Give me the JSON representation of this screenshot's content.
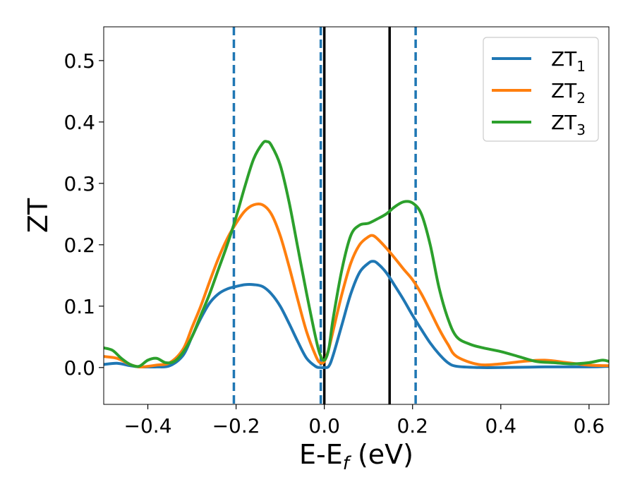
{
  "chart_data": {
    "type": "line",
    "title": "",
    "xlabel": "E-E",
    "xlabel_sub": "f",
    "xlabel_unit": " (eV)",
    "ylabel": "ZT",
    "xlim": [
      -0.5,
      0.645
    ],
    "ylim": [
      -0.06,
      0.555
    ],
    "xticks": [
      -0.4,
      -0.2,
      0.0,
      0.2,
      0.4,
      0.6
    ],
    "xtick_labels": [
      "−0.4",
      "−0.2",
      "0.0",
      "0.2",
      "0.4",
      "0.6"
    ],
    "yticks": [
      0.0,
      0.1,
      0.2,
      0.3,
      0.4,
      0.5
    ],
    "ytick_labels": [
      "0.0",
      "0.1",
      "0.2",
      "0.3",
      "0.4",
      "0.5"
    ],
    "grid": false,
    "legend_position": "top-right",
    "vlines_dashed": [
      -0.205,
      -0.008,
      0.207
    ],
    "vlines_solid": [
      0.0,
      0.148
    ],
    "vline_dashed_color": "#1f77b4",
    "vline_solid_color": "#000000",
    "series": [
      {
        "name": "ZT",
        "sub": "1",
        "color": "#1f77b4",
        "x": [
          -0.5,
          -0.47,
          -0.44,
          -0.42,
          -0.4,
          -0.38,
          -0.35,
          -0.32,
          -0.3,
          -0.28,
          -0.26,
          -0.24,
          -0.22,
          -0.2,
          -0.18,
          -0.16,
          -0.14,
          -0.12,
          -0.1,
          -0.08,
          -0.06,
          -0.04,
          -0.02,
          -0.01,
          0.0,
          0.01,
          0.02,
          0.04,
          0.06,
          0.08,
          0.1,
          0.11,
          0.12,
          0.14,
          0.16,
          0.18,
          0.2,
          0.22,
          0.24,
          0.26,
          0.28,
          0.3,
          0.35,
          0.4,
          0.5,
          0.6,
          0.645
        ],
        "y": [
          0.005,
          0.007,
          0.003,
          0.001,
          0.001,
          0.001,
          0.003,
          0.02,
          0.05,
          0.08,
          0.105,
          0.12,
          0.128,
          0.132,
          0.135,
          0.135,
          0.132,
          0.12,
          0.1,
          0.072,
          0.042,
          0.015,
          0.002,
          0.0,
          0.0,
          0.002,
          0.02,
          0.07,
          0.12,
          0.155,
          0.17,
          0.173,
          0.17,
          0.155,
          0.133,
          0.11,
          0.085,
          0.062,
          0.04,
          0.022,
          0.008,
          0.002,
          0.0,
          0.0,
          0.001,
          0.001,
          0.002
        ]
      },
      {
        "name": "ZT",
        "sub": "2",
        "color": "#ff7f0e",
        "x": [
          -0.5,
          -0.47,
          -0.44,
          -0.42,
          -0.4,
          -0.38,
          -0.35,
          -0.32,
          -0.3,
          -0.28,
          -0.26,
          -0.24,
          -0.22,
          -0.2,
          -0.18,
          -0.16,
          -0.14,
          -0.12,
          -0.1,
          -0.08,
          -0.06,
          -0.04,
          -0.02,
          -0.01,
          0.0,
          0.01,
          0.02,
          0.04,
          0.06,
          0.08,
          0.1,
          0.11,
          0.12,
          0.14,
          0.16,
          0.18,
          0.2,
          0.22,
          0.24,
          0.26,
          0.28,
          0.3,
          0.35,
          0.4,
          0.45,
          0.5,
          0.55,
          0.6,
          0.645
        ],
        "y": [
          0.018,
          0.015,
          0.005,
          0.001,
          0.002,
          0.004,
          0.008,
          0.03,
          0.065,
          0.1,
          0.14,
          0.178,
          0.21,
          0.235,
          0.255,
          0.265,
          0.265,
          0.25,
          0.215,
          0.165,
          0.11,
          0.058,
          0.02,
          0.008,
          0.01,
          0.03,
          0.06,
          0.12,
          0.17,
          0.2,
          0.213,
          0.215,
          0.21,
          0.195,
          0.178,
          0.16,
          0.143,
          0.12,
          0.092,
          0.063,
          0.038,
          0.018,
          0.005,
          0.006,
          0.01,
          0.012,
          0.008,
          0.004,
          0.003
        ]
      },
      {
        "name": "ZT",
        "sub": "3",
        "color": "#2ca02c",
        "x": [
          -0.5,
          -0.48,
          -0.46,
          -0.44,
          -0.42,
          -0.4,
          -0.38,
          -0.36,
          -0.34,
          -0.32,
          -0.3,
          -0.28,
          -0.26,
          -0.24,
          -0.22,
          -0.2,
          -0.18,
          -0.16,
          -0.14,
          -0.13,
          -0.12,
          -0.1,
          -0.08,
          -0.06,
          -0.04,
          -0.02,
          -0.01,
          0.0,
          0.01,
          0.02,
          0.04,
          0.06,
          0.08,
          0.1,
          0.12,
          0.14,
          0.16,
          0.18,
          0.2,
          0.22,
          0.24,
          0.26,
          0.28,
          0.3,
          0.33,
          0.36,
          0.4,
          0.44,
          0.48,
          0.52,
          0.56,
          0.6,
          0.63,
          0.645
        ],
        "y": [
          0.032,
          0.028,
          0.015,
          0.005,
          0.002,
          0.012,
          0.015,
          0.008,
          0.01,
          0.025,
          0.05,
          0.085,
          0.12,
          0.16,
          0.2,
          0.245,
          0.295,
          0.34,
          0.365,
          0.368,
          0.362,
          0.33,
          0.27,
          0.195,
          0.12,
          0.05,
          0.022,
          0.012,
          0.03,
          0.08,
          0.16,
          0.215,
          0.232,
          0.235,
          0.242,
          0.25,
          0.262,
          0.27,
          0.268,
          0.25,
          0.2,
          0.13,
          0.08,
          0.05,
          0.038,
          0.032,
          0.026,
          0.018,
          0.01,
          0.008,
          0.006,
          0.008,
          0.012,
          0.01
        ]
      }
    ]
  }
}
